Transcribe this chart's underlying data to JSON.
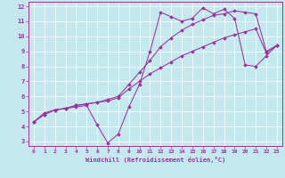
{
  "xlabel": "Windchill (Refroidissement éolien,°C)",
  "background_color": "#c5e8ef",
  "line_color": "#993399",
  "xlim": [
    -0.5,
    23.5
  ],
  "ylim": [
    2.7,
    12.3
  ],
  "xticks": [
    0,
    1,
    2,
    3,
    4,
    5,
    6,
    7,
    8,
    9,
    10,
    11,
    12,
    13,
    14,
    15,
    16,
    17,
    18,
    19,
    20,
    21,
    22,
    23
  ],
  "yticks": [
    3,
    4,
    5,
    6,
    7,
    8,
    9,
    10,
    11,
    12
  ],
  "line1_x": [
    0,
    1,
    2,
    3,
    4,
    5,
    6,
    7,
    8,
    9,
    10,
    11,
    12,
    13,
    14,
    15,
    16,
    17,
    18,
    19,
    20,
    21,
    22,
    23
  ],
  "line1_y": [
    4.3,
    4.8,
    5.1,
    5.2,
    5.3,
    5.4,
    4.1,
    2.9,
    3.5,
    5.3,
    6.8,
    9.0,
    11.6,
    11.3,
    11.0,
    11.2,
    11.9,
    11.5,
    11.8,
    11.2,
    8.1,
    8.0,
    8.7,
    9.4
  ],
  "line2_x": [
    0,
    1,
    2,
    3,
    4,
    5,
    6,
    7,
    8,
    9,
    10,
    11,
    12,
    13,
    14,
    15,
    16,
    17,
    18,
    19,
    20,
    21,
    22,
    23
  ],
  "line2_y": [
    4.3,
    4.8,
    5.1,
    5.2,
    5.4,
    5.5,
    5.6,
    5.8,
    6.0,
    6.8,
    7.6,
    8.4,
    9.3,
    9.9,
    10.4,
    10.8,
    11.1,
    11.4,
    11.5,
    11.7,
    11.6,
    11.5,
    9.0,
    9.4
  ],
  "line3_x": [
    0,
    1,
    2,
    3,
    4,
    5,
    6,
    7,
    8,
    9,
    10,
    11,
    12,
    13,
    14,
    15,
    16,
    17,
    18,
    19,
    20,
    21,
    22,
    23
  ],
  "line3_y": [
    4.3,
    4.9,
    5.1,
    5.2,
    5.4,
    5.5,
    5.6,
    5.7,
    5.9,
    6.5,
    7.0,
    7.5,
    7.9,
    8.3,
    8.7,
    9.0,
    9.3,
    9.6,
    9.9,
    10.1,
    10.3,
    10.5,
    8.9,
    9.4
  ]
}
